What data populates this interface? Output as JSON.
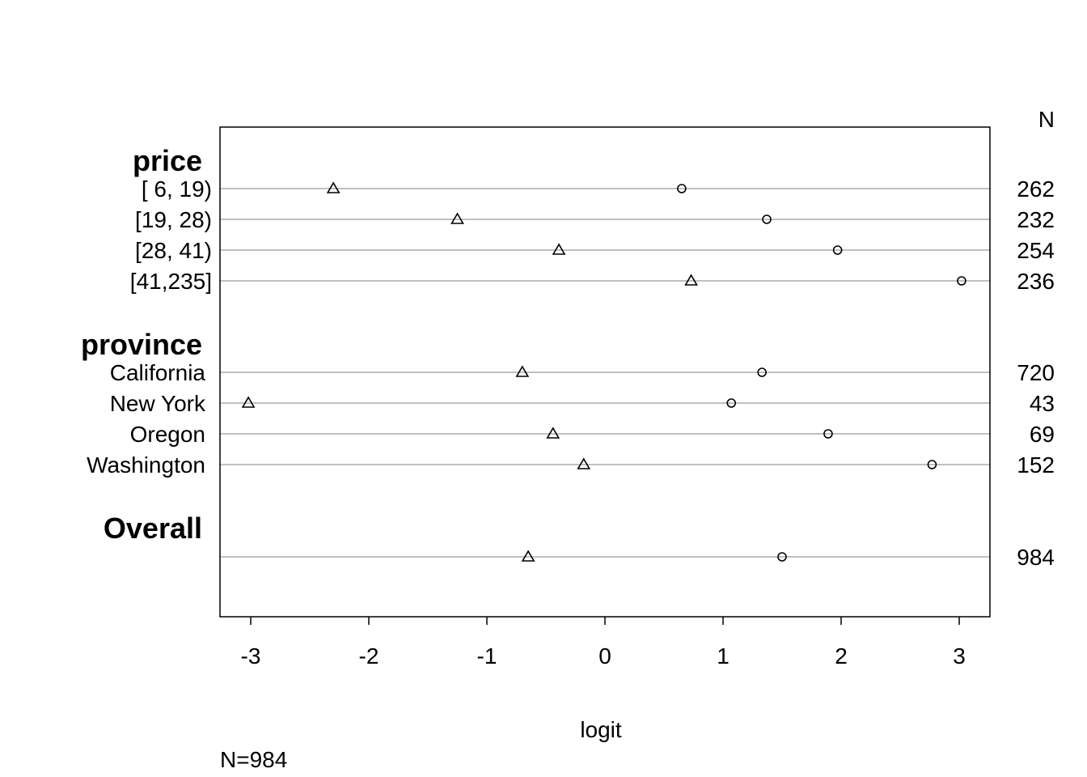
{
  "chart_data": {
    "type": "scatter",
    "xlabel": "logit",
    "xlim": [
      -3.25,
      3.25
    ],
    "x_ticks": [
      -3,
      -2,
      -1,
      0,
      1,
      2,
      3
    ],
    "x_tick_labels": [
      "-3",
      "-2",
      "-1",
      "0",
      "1",
      "2",
      "3"
    ],
    "n_header": "N",
    "footnote": "N=984",
    "grid": true,
    "groups": [
      {
        "name": "price",
        "rows": [
          {
            "label": "[ 6, 19)",
            "triangle": -2.3,
            "circle": 0.65,
            "n": "262"
          },
          {
            "label": "[19, 28)",
            "triangle": -1.25,
            "circle": 1.37,
            "n": "232"
          },
          {
            "label": "[28, 41)",
            "triangle": -0.39,
            "circle": 1.97,
            "n": "254"
          },
          {
            "label": "[41,235]",
            "triangle": 0.73,
            "circle": 3.02,
            "n": "236"
          }
        ]
      },
      {
        "name": "province",
        "rows": [
          {
            "label": "California",
            "triangle": -0.7,
            "circle": 1.33,
            "n": "720"
          },
          {
            "label": "New York",
            "triangle": -3.02,
            "circle": 1.07,
            "n": "43"
          },
          {
            "label": "Oregon",
            "triangle": -0.44,
            "circle": 1.89,
            "n": "69"
          },
          {
            "label": "Washington",
            "triangle": -0.18,
            "circle": 2.77,
            "n": "152"
          }
        ]
      },
      {
        "name": "Overall",
        "rows": [
          {
            "label": "",
            "triangle": -0.65,
            "circle": 1.5,
            "n": "984"
          }
        ]
      }
    ]
  }
}
